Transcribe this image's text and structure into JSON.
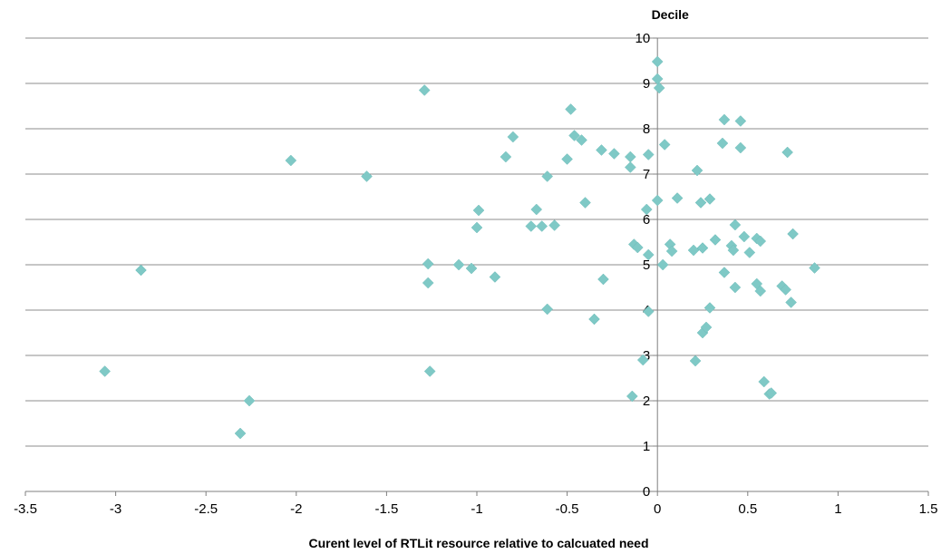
{
  "chart_data": {
    "type": "scatter",
    "xlabel": "Curent level of RTLit resource relative to calcuated need",
    "ylabel": "Decile",
    "xlim": [
      -3.5,
      1.5
    ],
    "ylim": [
      0,
      10
    ],
    "x_ticks": [
      "-3.5",
      "-3",
      "-2.5",
      "-2",
      "-1.5",
      "-1",
      "-0.5",
      "0",
      "0.5",
      "1",
      "1.5"
    ],
    "y_ticks": [
      "0",
      "1",
      "2",
      "3",
      "4",
      "5",
      "6",
      "7",
      "8",
      "9",
      "10"
    ],
    "grid": "horizontal",
    "marker": "diamond",
    "marker_color": "#7FC9C6",
    "points": [
      [
        -3.06,
        2.65
      ],
      [
        -2.86,
        4.88
      ],
      [
        -2.31,
        1.28
      ],
      [
        -2.26,
        2.0
      ],
      [
        -2.03,
        7.3
      ],
      [
        -1.61,
        6.95
      ],
      [
        -1.29,
        8.85
      ],
      [
        -1.27,
        5.02
      ],
      [
        -1.27,
        4.6
      ],
      [
        -1.26,
        2.65
      ],
      [
        -1.1,
        5.0
      ],
      [
        -1.03,
        4.92
      ],
      [
        -1.0,
        5.82
      ],
      [
        -0.99,
        6.2
      ],
      [
        -0.9,
        4.73
      ],
      [
        -0.84,
        7.38
      ],
      [
        -0.8,
        7.82
      ],
      [
        -0.7,
        5.85
      ],
      [
        -0.67,
        6.22
      ],
      [
        -0.64,
        5.85
      ],
      [
        -0.61,
        6.95
      ],
      [
        -0.61,
        4.02
      ],
      [
        -0.57,
        5.87
      ],
      [
        -0.5,
        7.33
      ],
      [
        -0.48,
        8.43
      ],
      [
        -0.46,
        7.85
      ],
      [
        -0.42,
        7.75
      ],
      [
        -0.4,
        6.37
      ],
      [
        -0.35,
        3.8
      ],
      [
        -0.31,
        7.53
      ],
      [
        -0.3,
        4.68
      ],
      [
        -0.24,
        7.45
      ],
      [
        -0.15,
        7.38
      ],
      [
        -0.15,
        7.15
      ],
      [
        -0.14,
        2.1
      ],
      [
        -0.13,
        5.45
      ],
      [
        -0.11,
        5.38
      ],
      [
        -0.08,
        2.9
      ],
      [
        -0.06,
        6.22
      ],
      [
        -0.05,
        3.97
      ],
      [
        -0.05,
        7.43
      ],
      [
        -0.05,
        5.22
      ],
      [
        0.0,
        6.42
      ],
      [
        0.0,
        9.48
      ],
      [
        0.0,
        9.1
      ],
      [
        0.01,
        8.9
      ],
      [
        0.03,
        5.0
      ],
      [
        0.04,
        7.65
      ],
      [
        0.07,
        5.45
      ],
      [
        0.08,
        5.3
      ],
      [
        0.11,
        6.47
      ],
      [
        0.2,
        5.32
      ],
      [
        0.21,
        2.88
      ],
      [
        0.22,
        7.08
      ],
      [
        0.24,
        6.37
      ],
      [
        0.25,
        5.37
      ],
      [
        0.25,
        3.5
      ],
      [
        0.27,
        3.62
      ],
      [
        0.29,
        4.05
      ],
      [
        0.29,
        6.45
      ],
      [
        0.32,
        5.55
      ],
      [
        0.36,
        7.68
      ],
      [
        0.37,
        8.2
      ],
      [
        0.37,
        4.83
      ],
      [
        0.41,
        5.42
      ],
      [
        0.42,
        5.32
      ],
      [
        0.43,
        5.88
      ],
      [
        0.43,
        4.5
      ],
      [
        0.46,
        8.17
      ],
      [
        0.46,
        7.58
      ],
      [
        0.48,
        5.62
      ],
      [
        0.51,
        5.27
      ],
      [
        0.55,
        5.58
      ],
      [
        0.55,
        4.58
      ],
      [
        0.57,
        4.42
      ],
      [
        0.57,
        5.52
      ],
      [
        0.59,
        2.42
      ],
      [
        0.62,
        2.15
      ],
      [
        0.63,
        2.17
      ],
      [
        0.69,
        4.53
      ],
      [
        0.71,
        4.45
      ],
      [
        0.72,
        7.48
      ],
      [
        0.74,
        4.17
      ],
      [
        0.75,
        5.68
      ],
      [
        0.87,
        4.93
      ]
    ]
  }
}
